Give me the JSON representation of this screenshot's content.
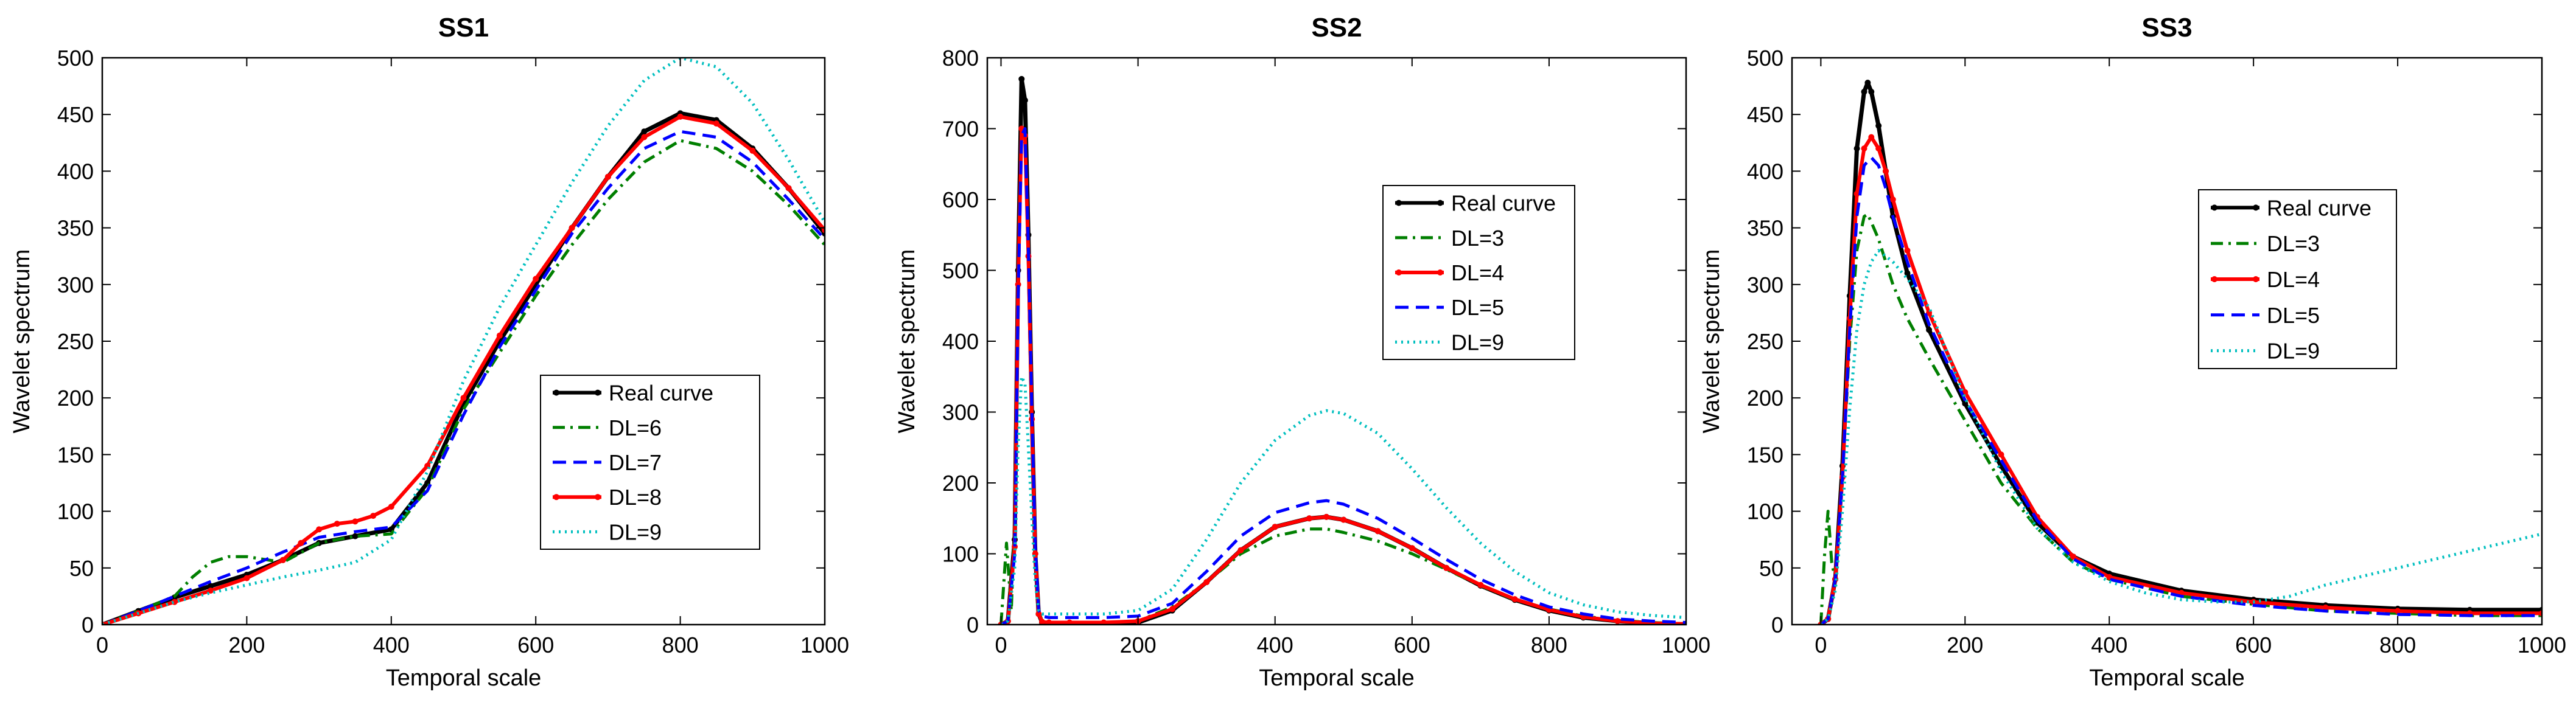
{
  "chart_data": [
    {
      "type": "line",
      "title": "SS1",
      "xlabel": "Temporal scale",
      "ylabel": "Wavelet spectrum",
      "xlim": [
        0,
        1000
      ],
      "ylim": [
        0,
        500
      ],
      "xticks": [
        0,
        200,
        400,
        600,
        800,
        1000
      ],
      "yticks": [
        0,
        50,
        100,
        150,
        200,
        250,
        300,
        350,
        400,
        450,
        500
      ],
      "grid": false,
      "legend": "bottom-right",
      "series": [
        {
          "name": "Real curve",
          "color": "#000000",
          "style": "solid-dot",
          "x": [
            0,
            50,
            100,
            150,
            200,
            250,
            300,
            350,
            400,
            450,
            500,
            550,
            600,
            650,
            700,
            750,
            800,
            850,
            900,
            950,
            1000
          ],
          "y": [
            0,
            12,
            24,
            34,
            44,
            57,
            72,
            78,
            84,
            125,
            195,
            250,
            300,
            350,
            395,
            435,
            451,
            445,
            420,
            385,
            345
          ]
        },
        {
          "name": "DL=6",
          "color": "#007f00",
          "style": "dashdot",
          "x": [
            0,
            50,
            100,
            125,
            150,
            175,
            200,
            250,
            300,
            350,
            400,
            450,
            500,
            550,
            600,
            650,
            700,
            750,
            800,
            850,
            900,
            950,
            1000
          ],
          "y": [
            0,
            12,
            25,
            42,
            55,
            60,
            60,
            55,
            72,
            78,
            80,
            120,
            190,
            240,
            290,
            335,
            375,
            408,
            427,
            420,
            400,
            370,
            335
          ]
        },
        {
          "name": "DL=7",
          "color": "#0000ff",
          "style": "dashed",
          "x": [
            0,
            50,
            100,
            150,
            200,
            250,
            300,
            350,
            400,
            450,
            500,
            550,
            600,
            650,
            700,
            750,
            800,
            850,
            900,
            950,
            1000
          ],
          "y": [
            0,
            12,
            25,
            38,
            50,
            64,
            77,
            82,
            86,
            118,
            185,
            245,
            295,
            345,
            385,
            420,
            435,
            430,
            408,
            375,
            340
          ]
        },
        {
          "name": "DL=8",
          "color": "#ff0000",
          "style": "solid-dot",
          "x": [
            0,
            50,
            100,
            150,
            200,
            250,
            275,
            300,
            325,
            350,
            375,
            400,
            450,
            500,
            550,
            600,
            650,
            700,
            750,
            800,
            850,
            900,
            950,
            1000
          ],
          "y": [
            0,
            10,
            20,
            30,
            41,
            57,
            72,
            84,
            89,
            91,
            96,
            104,
            140,
            200,
            255,
            305,
            350,
            395,
            430,
            448,
            442,
            418,
            385,
            348
          ]
        },
        {
          "name": "DL=9",
          "color": "#00bfbf",
          "style": "dotted",
          "x": [
            0,
            50,
            100,
            150,
            200,
            250,
            300,
            350,
            400,
            450,
            500,
            550,
            600,
            650,
            700,
            750,
            800,
            850,
            900,
            950,
            1000
          ],
          "y": [
            0,
            10,
            20,
            28,
            35,
            42,
            48,
            55,
            75,
            135,
            215,
            280,
            335,
            390,
            440,
            480,
            500,
            492,
            460,
            410,
            355
          ]
        }
      ]
    },
    {
      "type": "line",
      "title": "SS2",
      "xlabel": "Temporal scale",
      "ylabel": "Wavelet spectrum",
      "xlim": [
        -20,
        1000
      ],
      "ylim": [
        0,
        800
      ],
      "xticks": [
        0,
        200,
        400,
        600,
        800,
        1000
      ],
      "yticks": [
        0,
        100,
        200,
        300,
        400,
        500,
        600,
        700,
        800
      ],
      "grid": false,
      "legend": "top-right",
      "series": [
        {
          "name": "Real curve",
          "color": "#000000",
          "style": "solid-dot",
          "x": [
            0,
            10,
            20,
            25,
            30,
            35,
            40,
            45,
            50,
            55,
            60,
            70,
            100,
            150,
            200,
            250,
            300,
            350,
            400,
            450,
            475,
            500,
            550,
            600,
            650,
            700,
            750,
            800,
            850,
            900,
            950,
            1000
          ],
          "y": [
            0,
            5,
            120,
            500,
            770,
            740,
            550,
            300,
            100,
            15,
            3,
            2,
            2,
            2,
            3,
            20,
            60,
            105,
            138,
            150,
            152,
            148,
            132,
            108,
            80,
            55,
            35,
            20,
            10,
            5,
            2,
            0
          ]
        },
        {
          "name": "DL=3",
          "color": "#007f00",
          "style": "dashdot",
          "x": [
            0,
            8,
            15,
            20,
            25,
            30,
            35,
            40,
            45,
            50,
            55,
            60,
            70,
            100,
            150,
            200,
            250,
            300,
            350,
            400,
            450,
            475,
            500,
            550,
            600,
            650,
            700,
            750,
            800,
            850,
            900,
            950,
            1000
          ],
          "y": [
            0,
            115,
            20,
            150,
            500,
            690,
            680,
            520,
            300,
            100,
            20,
            5,
            3,
            3,
            3,
            5,
            25,
            60,
            100,
            125,
            135,
            135,
            130,
            118,
            100,
            78,
            55,
            35,
            22,
            12,
            6,
            3,
            1
          ]
        },
        {
          "name": "DL=4",
          "color": "#ff0000",
          "style": "solid-dot",
          "x": [
            0,
            10,
            20,
            25,
            30,
            35,
            40,
            45,
            50,
            55,
            60,
            70,
            100,
            150,
            200,
            250,
            300,
            350,
            400,
            450,
            475,
            500,
            550,
            600,
            650,
            700,
            750,
            800,
            850,
            900,
            950,
            1000
          ],
          "y": [
            0,
            5,
            110,
            480,
            700,
            690,
            520,
            290,
            100,
            15,
            4,
            3,
            3,
            3,
            5,
            22,
            60,
            105,
            138,
            150,
            152,
            148,
            132,
            108,
            80,
            56,
            36,
            21,
            11,
            5,
            2,
            1
          ]
        },
        {
          "name": "DL=5",
          "color": "#0000ff",
          "style": "dashed",
          "x": [
            0,
            10,
            20,
            25,
            30,
            35,
            40,
            45,
            50,
            55,
            60,
            70,
            100,
            150,
            200,
            250,
            300,
            350,
            400,
            450,
            475,
            500,
            550,
            600,
            650,
            700,
            750,
            800,
            850,
            900,
            950,
            1000
          ],
          "y": [
            0,
            5,
            100,
            460,
            690,
            700,
            530,
            300,
            110,
            20,
            12,
            10,
            10,
            10,
            12,
            30,
            75,
            125,
            158,
            172,
            175,
            170,
            150,
            122,
            92,
            64,
            42,
            25,
            15,
            8,
            5,
            3
          ]
        },
        {
          "name": "DL=9",
          "color": "#00bfbf",
          "style": "dotted",
          "x": [
            0,
            10,
            20,
            25,
            30,
            35,
            40,
            45,
            50,
            55,
            60,
            70,
            100,
            150,
            200,
            250,
            300,
            350,
            400,
            450,
            475,
            500,
            550,
            600,
            650,
            700,
            750,
            800,
            850,
            900,
            950,
            1000
          ],
          "y": [
            0,
            5,
            80,
            250,
            350,
            340,
            250,
            150,
            60,
            20,
            15,
            15,
            15,
            15,
            20,
            50,
            120,
            200,
            260,
            295,
            302,
            298,
            270,
            220,
            165,
            115,
            75,
            45,
            28,
            18,
            13,
            10
          ]
        }
      ]
    },
    {
      "type": "line",
      "title": "SS3",
      "xlabel": "Temporal scale",
      "ylabel": "Wavelet spectrum",
      "xlim": [
        -40,
        1000
      ],
      "ylim": [
        0,
        500
      ],
      "xticks": [
        0,
        200,
        400,
        600,
        800,
        1000
      ],
      "yticks": [
        0,
        50,
        100,
        150,
        200,
        250,
        300,
        350,
        400,
        450,
        500
      ],
      "grid": false,
      "legend": "top-right",
      "series": [
        {
          "name": "Real curve",
          "color": "#000000",
          "style": "solid-dot",
          "x": [
            0,
            10,
            20,
            30,
            40,
            50,
            60,
            65,
            70,
            80,
            90,
            100,
            120,
            150,
            200,
            250,
            300,
            350,
            400,
            500,
            600,
            700,
            800,
            900,
            1000
          ],
          "y": [
            0,
            5,
            40,
            140,
            290,
            420,
            470,
            478,
            470,
            440,
            400,
            360,
            310,
            260,
            195,
            140,
            90,
            60,
            45,
            30,
            22,
            17,
            14,
            13,
            13
          ]
        },
        {
          "name": "DL=3",
          "color": "#007f00",
          "style": "dashdot",
          "x": [
            0,
            5,
            10,
            15,
            20,
            30,
            40,
            50,
            60,
            65,
            70,
            80,
            90,
            100,
            120,
            150,
            200,
            250,
            300,
            350,
            400,
            500,
            600,
            700,
            800,
            900,
            1000
          ],
          "y": [
            0,
            60,
            100,
            55,
            40,
            130,
            250,
            330,
            360,
            362,
            355,
            340,
            320,
            300,
            270,
            235,
            180,
            125,
            85,
            55,
            40,
            25,
            18,
            12,
            10,
            8,
            8
          ]
        },
        {
          "name": "DL=4",
          "color": "#ff0000",
          "style": "solid-dot",
          "x": [
            0,
            10,
            20,
            30,
            40,
            50,
            60,
            70,
            80,
            90,
            100,
            120,
            150,
            200,
            250,
            300,
            350,
            400,
            500,
            600,
            700,
            800,
            900,
            1000
          ],
          "y": [
            0,
            5,
            40,
            130,
            270,
            380,
            420,
            430,
            420,
            400,
            375,
            330,
            275,
            205,
            150,
            95,
            60,
            42,
            28,
            20,
            15,
            12,
            10,
            10
          ]
        },
        {
          "name": "DL=5",
          "color": "#0000ff",
          "style": "dashed",
          "x": [
            0,
            10,
            20,
            30,
            40,
            50,
            60,
            70,
            80,
            90,
            100,
            120,
            150,
            200,
            250,
            300,
            350,
            400,
            500,
            600,
            700,
            800,
            900,
            1000
          ],
          "y": [
            0,
            5,
            40,
            130,
            260,
            360,
            405,
            412,
            405,
            385,
            360,
            320,
            265,
            198,
            145,
            92,
            58,
            40,
            25,
            17,
            12,
            9,
            8,
            8
          ]
        },
        {
          "name": "DL=9",
          "color": "#00bfbf",
          "style": "dotted",
          "x": [
            0,
            10,
            20,
            30,
            40,
            50,
            60,
            70,
            80,
            100,
            120,
            150,
            200,
            250,
            300,
            350,
            400,
            450,
            500,
            550,
            600,
            650,
            700,
            800,
            900,
            1000
          ],
          "y": [
            0,
            5,
            30,
            100,
            190,
            260,
            300,
            320,
            330,
            320,
            305,
            280,
            200,
            135,
            85,
            55,
            38,
            28,
            22,
            20,
            20,
            25,
            35,
            50,
            65,
            80
          ]
        }
      ]
    }
  ]
}
